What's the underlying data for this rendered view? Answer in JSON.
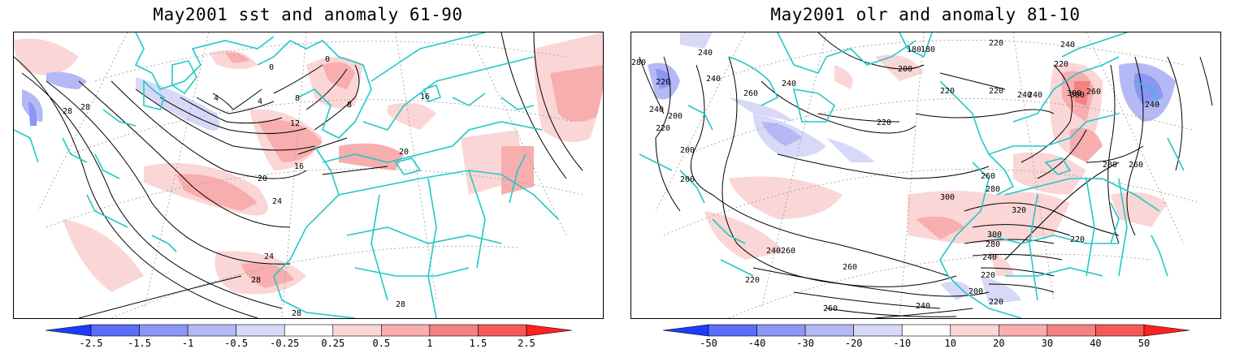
{
  "panels": [
    {
      "title": "May2001 sst and anomaly 61-90",
      "contour_labels": [
        "28",
        "28",
        "24",
        "20",
        "16",
        "12",
        "8",
        "4",
        "4",
        "0",
        "0",
        "8",
        "16",
        "20",
        "24",
        "28",
        "28",
        "28"
      ],
      "colorbar": {
        "levels": [
          "-2.5",
          "-1.5",
          "-1",
          "-0.5",
          "-0.25",
          "0.25",
          "0.5",
          "1",
          "1.5",
          "2.5"
        ],
        "colors": [
          "#1e3cff",
          "#5a6ef8",
          "#8c96f5",
          "#b4b9f5",
          "#d7d9f7",
          "#ffffff",
          "#fbd6d6",
          "#f8aeae",
          "#f58282",
          "#f55a5a",
          "#ff2020"
        ]
      }
    },
    {
      "title": "May2001 olr and anomaly 81-10",
      "contour_labels": [
        "280",
        "240",
        "220",
        "240",
        "260",
        "200",
        "220",
        "240",
        "200",
        "200",
        "180",
        "220",
        "240",
        "220",
        "220",
        "240",
        "220",
        "240",
        "260",
        "300",
        "300",
        "240",
        "280",
        "260",
        "260",
        "280",
        "300",
        "320",
        "300",
        "280",
        "260",
        "240",
        "220",
        "240",
        "220",
        "200",
        "220",
        "260",
        "260",
        "240",
        "220",
        "200",
        "180",
        "220",
        "240"
      ],
      "colorbar": {
        "levels": [
          "-50",
          "-40",
          "-30",
          "-20",
          "-10",
          "10",
          "20",
          "30",
          "40",
          "50"
        ],
        "colors": [
          "#1e3cff",
          "#5a6ef8",
          "#8c96f5",
          "#b4b9f5",
          "#d7d9f7",
          "#ffffff",
          "#fbd6d6",
          "#f8aeae",
          "#f58282",
          "#f55a5a",
          "#ff2020"
        ]
      }
    }
  ]
}
